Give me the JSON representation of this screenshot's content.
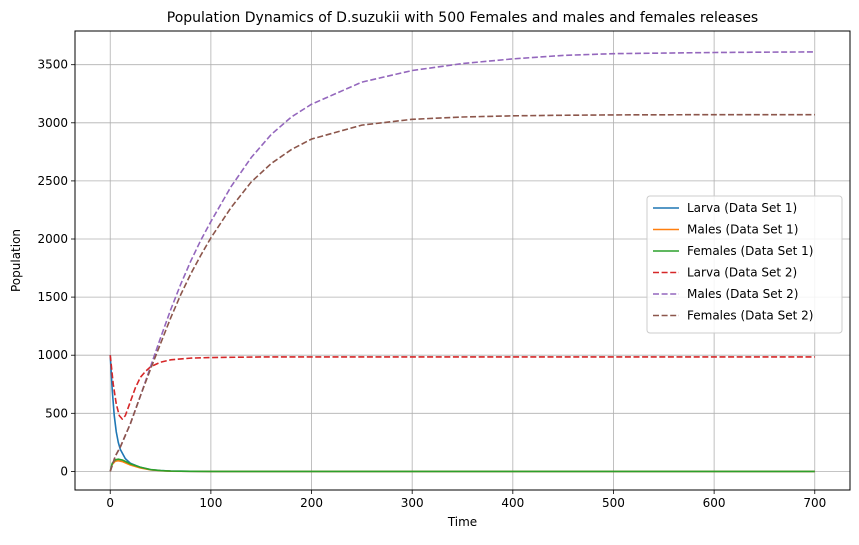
{
  "chart_data": {
    "type": "line",
    "title": "Population Dynamics of D.suzukii with 500 Females and males and females releases",
    "xlabel": "Time",
    "ylabel": "Population",
    "xlim": [
      -35,
      735
    ],
    "ylim": [
      -160,
      3790
    ],
    "x_ticks": [
      0,
      100,
      200,
      300,
      400,
      500,
      600,
      700
    ],
    "y_ticks": [
      0,
      500,
      1000,
      1500,
      2000,
      2500,
      3000,
      3500
    ],
    "grid": true,
    "legend_position": "center-right",
    "series": [
      {
        "name": "Larva (Data Set 1)",
        "color": "#1f77b4",
        "dash": "solid",
        "points": [
          [
            0,
            1000
          ],
          [
            2,
            700
          ],
          [
            4,
            480
          ],
          [
            6,
            340
          ],
          [
            8,
            250
          ],
          [
            10,
            190
          ],
          [
            15,
            110
          ],
          [
            20,
            70
          ],
          [
            30,
            35
          ],
          [
            40,
            15
          ],
          [
            50,
            7
          ],
          [
            60,
            3
          ],
          [
            80,
            1
          ],
          [
            100,
            0
          ],
          [
            700,
            0
          ]
        ]
      },
      {
        "name": "Males (Data Set 1)",
        "color": "#ff7f0e",
        "dash": "solid",
        "points": [
          [
            0,
            0
          ],
          [
            2,
            60
          ],
          [
            5,
            88
          ],
          [
            8,
            92
          ],
          [
            12,
            85
          ],
          [
            16,
            70
          ],
          [
            20,
            55
          ],
          [
            30,
            30
          ],
          [
            40,
            14
          ],
          [
            50,
            6
          ],
          [
            60,
            2
          ],
          [
            80,
            1
          ],
          [
            100,
            0
          ],
          [
            700,
            0
          ]
        ]
      },
      {
        "name": "Females (Data Set 1)",
        "color": "#2ca02c",
        "dash": "solid",
        "points": [
          [
            0,
            0
          ],
          [
            2,
            70
          ],
          [
            5,
            100
          ],
          [
            8,
            105
          ],
          [
            12,
            98
          ],
          [
            16,
            82
          ],
          [
            20,
            65
          ],
          [
            30,
            36
          ],
          [
            40,
            16
          ],
          [
            50,
            7
          ],
          [
            60,
            3
          ],
          [
            80,
            1
          ],
          [
            100,
            0
          ],
          [
            700,
            0
          ]
        ]
      },
      {
        "name": "Larva (Data Set 2)",
        "color": "#d62728",
        "dash": "dashed",
        "points": [
          [
            0,
            1000
          ],
          [
            3,
            750
          ],
          [
            6,
            580
          ],
          [
            9,
            480
          ],
          [
            12,
            450
          ],
          [
            15,
            480
          ],
          [
            20,
            600
          ],
          [
            25,
            720
          ],
          [
            30,
            810
          ],
          [
            35,
            860
          ],
          [
            40,
            900
          ],
          [
            50,
            940
          ],
          [
            60,
            960
          ],
          [
            80,
            975
          ],
          [
            100,
            980
          ],
          [
            150,
            985
          ],
          [
            200,
            985
          ],
          [
            300,
            985
          ],
          [
            400,
            985
          ],
          [
            500,
            985
          ],
          [
            600,
            985
          ],
          [
            700,
            985
          ]
        ]
      },
      {
        "name": "Males (Data Set 2)",
        "color": "#9467bd",
        "dash": "dashed",
        "points": [
          [
            0,
            0
          ],
          [
            5,
            130
          ],
          [
            10,
            210
          ],
          [
            20,
            410
          ],
          [
            30,
            650
          ],
          [
            40,
            900
          ],
          [
            50,
            1150
          ],
          [
            60,
            1390
          ],
          [
            70,
            1610
          ],
          [
            80,
            1810
          ],
          [
            90,
            1990
          ],
          [
            100,
            2150
          ],
          [
            120,
            2450
          ],
          [
            140,
            2700
          ],
          [
            160,
            2900
          ],
          [
            180,
            3050
          ],
          [
            200,
            3160
          ],
          [
            250,
            3350
          ],
          [
            300,
            3450
          ],
          [
            350,
            3510
          ],
          [
            400,
            3550
          ],
          [
            450,
            3580
          ],
          [
            500,
            3595
          ],
          [
            550,
            3600
          ],
          [
            600,
            3605
          ],
          [
            650,
            3608
          ],
          [
            700,
            3610
          ]
        ]
      },
      {
        "name": "Females (Data Set 2)",
        "color": "#8c564b",
        "dash": "dashed",
        "points": [
          [
            0,
            0
          ],
          [
            5,
            130
          ],
          [
            10,
            210
          ],
          [
            20,
            410
          ],
          [
            30,
            650
          ],
          [
            40,
            880
          ],
          [
            50,
            1100
          ],
          [
            60,
            1320
          ],
          [
            70,
            1520
          ],
          [
            80,
            1700
          ],
          [
            90,
            1860
          ],
          [
            100,
            2010
          ],
          [
            120,
            2270
          ],
          [
            140,
            2490
          ],
          [
            160,
            2650
          ],
          [
            180,
            2770
          ],
          [
            200,
            2860
          ],
          [
            250,
            2980
          ],
          [
            300,
            3030
          ],
          [
            350,
            3050
          ],
          [
            400,
            3060
          ],
          [
            450,
            3065
          ],
          [
            500,
            3068
          ],
          [
            600,
            3070
          ],
          [
            700,
            3070
          ]
        ]
      }
    ]
  }
}
